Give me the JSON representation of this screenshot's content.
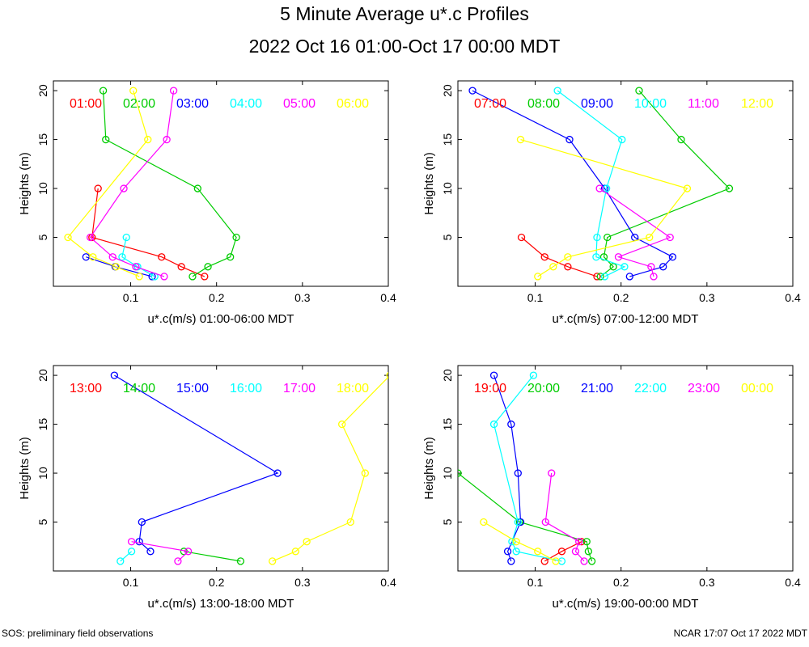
{
  "figure": {
    "title": "5 Minute Average u*.c Profiles",
    "subtitle": "2022 Oct 16 01:00-Oct 17 00:00 MDT",
    "footer_left": "SOS: preliminary field observations",
    "footer_right": "NCAR 17:07 Oct 17 2022 MDT"
  },
  "chart_data": [
    {
      "type": "line",
      "xlabel": "u*.c(m/s) 01:00-06:00 MDT",
      "ylabel": "Heights (m)",
      "xlim": [
        0.01,
        0.4
      ],
      "ylim": [
        0,
        21
      ],
      "xticks": [
        "0.1",
        "0.2",
        "0.3",
        "0.4"
      ],
      "yticks": [
        "5",
        "10",
        "15",
        "20"
      ],
      "series": [
        {
          "name": "01:00",
          "color": "#ff0000",
          "points": [
            [
              0.186,
              1
            ],
            [
              0.159,
              2
            ],
            [
              0.136,
              3
            ],
            [
              0.055,
              5
            ],
            [
              0.062,
              10
            ]
          ]
        },
        {
          "name": "02:00",
          "color": "#00cc00",
          "points": [
            [
              0.172,
              1
            ],
            [
              0.19,
              2
            ],
            [
              0.216,
              3
            ],
            [
              0.223,
              5
            ],
            [
              0.178,
              10
            ],
            [
              0.071,
              15
            ],
            [
              0.068,
              20
            ]
          ]
        },
        {
          "name": "03:00",
          "color": "#0000ff",
          "points": [
            [
              0.125,
              1
            ],
            [
              0.082,
              2
            ],
            [
              0.048,
              3
            ]
          ]
        },
        {
          "name": "04:00",
          "color": "#00ffff",
          "points": [
            [
              0.128,
              1
            ],
            [
              0.108,
              2
            ],
            [
              0.09,
              3
            ],
            [
              0.095,
              5
            ]
          ]
        },
        {
          "name": "05:00",
          "color": "#ff00ff",
          "points": [
            [
              0.139,
              1
            ],
            [
              0.106,
              2
            ],
            [
              0.079,
              3
            ],
            [
              0.053,
              5
            ],
            [
              0.092,
              10
            ],
            [
              0.142,
              15
            ],
            [
              0.15,
              20
            ]
          ]
        },
        {
          "name": "06:00",
          "color": "#ffff00",
          "points": [
            [
              0.11,
              1
            ],
            [
              0.083,
              2
            ],
            [
              0.056,
              3
            ],
            [
              0.027,
              5
            ],
            [
              0.12,
              15
            ],
            [
              0.103,
              20
            ]
          ]
        }
      ]
    },
    {
      "type": "line",
      "xlabel": "u*.c(m/s) 07:00-12:00 MDT",
      "ylabel": "Heights (m)",
      "xlim": [
        0.01,
        0.4
      ],
      "ylim": [
        0,
        21
      ],
      "xticks": [
        "0.1",
        "0.2",
        "0.3",
        "0.4"
      ],
      "yticks": [
        "5",
        "10",
        "15",
        "20"
      ],
      "series": [
        {
          "name": "07:00",
          "color": "#ff0000",
          "points": [
            [
              0.172,
              1
            ],
            [
              0.138,
              2
            ],
            [
              0.111,
              3
            ],
            [
              0.084,
              5
            ]
          ]
        },
        {
          "name": "08:00",
          "color": "#00cc00",
          "points": [
            [
              0.176,
              1
            ],
            [
              0.191,
              2
            ],
            [
              0.18,
              3
            ],
            [
              0.184,
              5
            ],
            [
              0.326,
              10
            ],
            [
              0.27,
              15
            ],
            [
              0.221,
              20
            ]
          ]
        },
        {
          "name": "09:00",
          "color": "#0000ff",
          "points": [
            [
              0.21,
              1
            ],
            [
              0.249,
              2
            ],
            [
              0.26,
              3
            ],
            [
              0.216,
              5
            ],
            [
              0.181,
              10
            ],
            [
              0.14,
              15
            ],
            [
              0.027,
              20
            ]
          ]
        },
        {
          "name": "10:00",
          "color": "#00ffff",
          "points": [
            [
              0.181,
              1
            ],
            [
              0.204,
              2
            ],
            [
              0.171,
              3
            ],
            [
              0.172,
              5
            ],
            [
              0.183,
              10
            ],
            [
              0.201,
              15
            ],
            [
              0.126,
              20
            ]
          ]
        },
        {
          "name": "11:00",
          "color": "#ff00ff",
          "points": [
            [
              0.238,
              1
            ],
            [
              0.235,
              2
            ],
            [
              0.197,
              3
            ],
            [
              0.257,
              5
            ],
            [
              0.175,
              10
            ]
          ]
        },
        {
          "name": "12:00",
          "color": "#ffff00",
          "points": [
            [
              0.103,
              1
            ],
            [
              0.121,
              2
            ],
            [
              0.138,
              3
            ],
            [
              0.233,
              5
            ],
            [
              0.277,
              10
            ],
            [
              0.083,
              15
            ]
          ]
        }
      ]
    },
    {
      "type": "line",
      "xlabel": "u*.c(m/s) 13:00-18:00 MDT",
      "ylabel": "Heights (m)",
      "xlim": [
        0.01,
        0.4
      ],
      "ylim": [
        0,
        21
      ],
      "xticks": [
        "0.1",
        "0.2",
        "0.3",
        "0.4"
      ],
      "yticks": [
        "5",
        "10",
        "15",
        "20"
      ],
      "series": [
        {
          "name": "13:00",
          "color": "#ff0000",
          "points": []
        },
        {
          "name": "14:00",
          "color": "#00cc00",
          "points": [
            [
              0.228,
              1
            ],
            [
              0.162,
              2
            ]
          ]
        },
        {
          "name": "15:00",
          "color": "#0000ff",
          "points": [
            [
              0.123,
              2
            ],
            [
              0.11,
              3
            ],
            [
              0.113,
              5
            ],
            [
              0.271,
              10
            ],
            [
              0.081,
              20
            ]
          ]
        },
        {
          "name": "16:00",
          "color": "#00ffff",
          "points": [
            [
              0.088,
              1
            ],
            [
              0.101,
              2
            ]
          ]
        },
        {
          "name": "17:00",
          "color": "#ff00ff",
          "points": [
            [
              0.155,
              1
            ],
            [
              0.167,
              2
            ],
            [
              0.101,
              3
            ]
          ]
        },
        {
          "name": "18:00",
          "color": "#ffff00",
          "points": [
            [
              0.265,
              1
            ],
            [
              0.292,
              2
            ],
            [
              0.305,
              3
            ],
            [
              0.356,
              5
            ],
            [
              0.373,
              10
            ],
            [
              0.346,
              15
            ],
            [
              0.402,
              20
            ]
          ]
        }
      ]
    },
    {
      "type": "line",
      "xlabel": "u*.c(m/s) 19:00-00:00 MDT",
      "ylabel": "Heights (m)",
      "xlim": [
        0.01,
        0.4
      ],
      "ylim": [
        0,
        21
      ],
      "xticks": [
        "0.1",
        "0.2",
        "0.3",
        "0.4"
      ],
      "yticks": [
        "5",
        "10",
        "15",
        "20"
      ],
      "series": [
        {
          "name": "19:00",
          "color": "#ff0000",
          "points": [
            [
              0.111,
              1
            ],
            [
              0.131,
              2
            ],
            [
              0.154,
              3
            ]
          ]
        },
        {
          "name": "20:00",
          "color": "#00cc00",
          "points": [
            [
              0.166,
              1
            ],
            [
              0.162,
              2
            ],
            [
              0.16,
              3
            ],
            [
              0.082,
              5
            ],
            [
              0.01,
              10
            ]
          ]
        },
        {
          "name": "21:00",
          "color": "#0000ff",
          "points": [
            [
              0.072,
              1
            ],
            [
              0.068,
              2
            ],
            [
              0.083,
              5
            ],
            [
              0.08,
              10
            ],
            [
              0.072,
              15
            ],
            [
              0.052,
              20
            ]
          ]
        },
        {
          "name": "22:00",
          "color": "#00ffff",
          "points": [
            [
              0.131,
              1
            ],
            [
              0.078,
              2
            ],
            [
              0.073,
              3
            ],
            [
              0.08,
              5
            ],
            [
              0.052,
              15
            ],
            [
              0.098,
              20
            ]
          ]
        },
        {
          "name": "23:00",
          "color": "#ff00ff",
          "points": [
            [
              0.157,
              1
            ],
            [
              0.147,
              2
            ],
            [
              0.151,
              3
            ],
            [
              0.112,
              5
            ],
            [
              0.119,
              10
            ]
          ]
        },
        {
          "name": "00:00",
          "color": "#ffff00",
          "points": [
            [
              0.124,
              1
            ],
            [
              0.103,
              2
            ],
            [
              0.078,
              3
            ],
            [
              0.04,
              5
            ]
          ]
        }
      ]
    }
  ]
}
